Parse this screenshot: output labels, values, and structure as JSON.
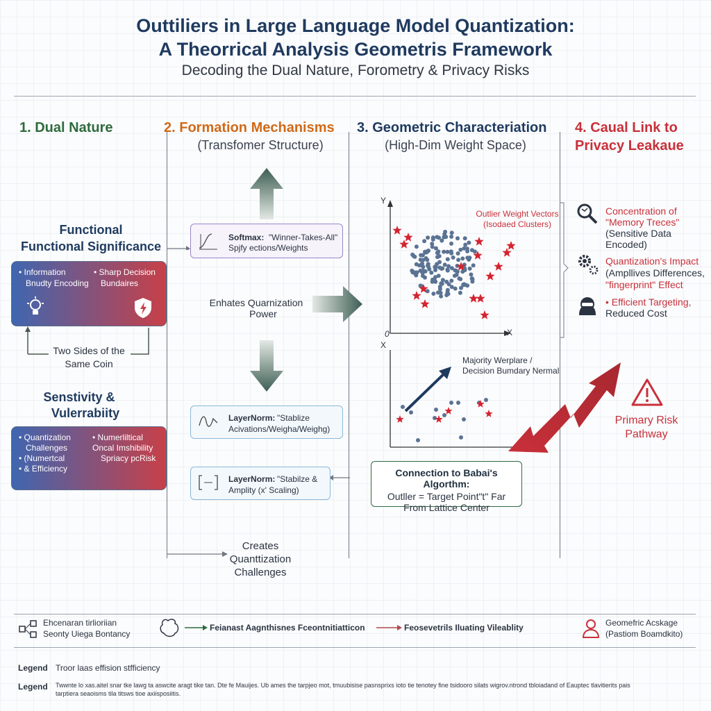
{
  "header": {
    "title_line1": "Outtiliers in Large Language Model Quantization:",
    "title_line2": "A Theorrical Analysis Geometris Framework",
    "subtitle": "Decoding the Dual Nature, Forometry & Privacy Risks"
  },
  "col1": {
    "heading": "1. Dual Nature",
    "func_title_1": "Functional",
    "func_title_2": "Functional Significance",
    "func_box": {
      "l1": "• Information",
      "l2": "Bnudty Encoding",
      "r1": "• Sharp Decision",
      "r2": "Bundaires"
    },
    "two_sides_1": "Two Sides of the",
    "two_sides_2": "Same Coin",
    "sens_title_1": "Senstivity &",
    "sens_title_2": "Vulerrabiity",
    "sens_box": {
      "l1": "• Quantization",
      "l2": "Challenges",
      "l3": "• (Numertcal",
      "l4": "• & Efficiency",
      "r1": "• Numerliltical",
      "r2": "Oncal Imshibility",
      "r3": "Spriacy pcRisk"
    },
    "colors": {
      "green": "#2e6b3e",
      "grad_left": "#3f66b0",
      "grad_right": "#c84048"
    }
  },
  "col2": {
    "heading": "2. Formation Mechanisms",
    "sub": "(Transfomer Structure)",
    "softmax_title": "Softmax:",
    "softmax_text1": "\"Winner-Takes-All\"",
    "softmax_text2": "Spjfy ections/Weights",
    "enhates_1": "Enhates Quarnization",
    "enhates_2": "Power",
    "ln1_title": "LayerNorm:",
    "ln1_text1": "\"Stablize",
    "ln1_text2": "Acivations/Weigha/Weighg)",
    "ln2_title": "LayerNorm:",
    "ln2_text1": "\"Stabilze &",
    "ln2_text2": "Amplity (x' Scaling)",
    "creates_1": "Creates",
    "creates_2": "Quanttization",
    "creates_3": "Challenges"
  },
  "col3": {
    "heading": "3. Geometric Characteriation",
    "sub": "(High-Dim Weight Space)",
    "outlier_label_1": "Outlier Weight Vectors",
    "outlier_label_2": "(Isodaed Clusters)",
    "axis_y": "Y",
    "axis_x": "X",
    "axis_origin": "0",
    "axis2_y": "X",
    "majority_1": "Majority Werplare /",
    "majority_2": "Decision Bumdary Nermal",
    "babai_title": "Connection to Babai's Algorthm:",
    "babai_1": "Outller = Target Point\"t\" Far",
    "babai_2": "From Lattice Center"
  },
  "col4": {
    "heading_1": "4. Caual Link to",
    "heading_2": "Privacy Leakaue",
    "item1_a": "Concentration of",
    "item1_b": "\"Memory Treces\"",
    "item1_c": "(Sensitive Data Encoded)",
    "item2_a": "Quantization's Impact",
    "item2_b": "(Ampllives Differences,",
    "item2_c": "\"fingerprint\" Effect",
    "item3_a": "• Efficient Targeting,",
    "item3_b": "Reduced Cost",
    "risk_1": "Primary Risk",
    "risk_2": "Pathway",
    "icons": [
      "magnifier-icon",
      "gears-icon",
      "hacker-icon",
      "warning-icon"
    ]
  },
  "footer": {
    "f1_a": "Ehcenaran tirlioriian",
    "f1_b": "Seonty Uiega Bontancy",
    "f2": "Feianast Aagnthisnes Fceontnitiatticon",
    "f3": "Feosevetrils Iluating Vileablity",
    "f4_a": "Geomefric Acskage",
    "f4_b": "(Pastiom Boamdkito)",
    "legend_label": "Legend",
    "legend1": "Troor laas effision stfficiency",
    "legend2_label": "Legend",
    "legend2_a": "Twwnte lo xas.aitel snar tke lawg ta aswcite aragt tike tan. Dte fe Mauijes. Ub ames the tarpjeo mot, tmuubisise pasnsprixs ioto tie tenotey fine tsidooro silats wigrov.ntrond tbloiadand of Eauptec tlavitierits pais",
    "legend2_b": "tarptiera seaoisms tila titsws tioe axiisposiitis."
  }
}
